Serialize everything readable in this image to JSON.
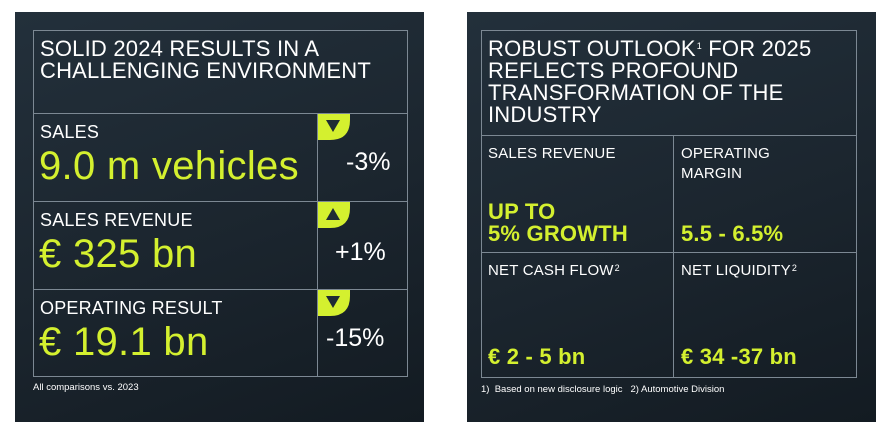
{
  "left": {
    "title_line1": "SOLID 2024 RESULTS IN A",
    "title_line2": "CHALLENGING ENVIRONMENT",
    "rows": [
      {
        "label": "SALES",
        "value": "9.0 m vehicles",
        "change": "-3%",
        "direction": "down"
      },
      {
        "label": "SALES REVENUE",
        "value": "€ 325 bn",
        "change": "+1%",
        "direction": "up"
      },
      {
        "label": "OPERATING RESULT",
        "value": "€ 19.1 bn",
        "change": "-15%",
        "direction": "down"
      }
    ],
    "footnote": "All comparisons vs. 2023"
  },
  "right": {
    "title_l1a": "ROBUST OUTLOOK",
    "title_l1sup": "1",
    "title_l1b": " FOR 2025",
    "title_l2": "REFLECTS PROFOUND",
    "title_l3": "TRANSFORMATION OF THE",
    "title_l4": "INDUSTRY",
    "cells": {
      "sales_revenue_label": "SALES REVENUE",
      "sales_revenue_value_l1": "UP TO",
      "sales_revenue_value_l2": "5% GROWTH",
      "operating_margin_label_l1": "OPERATING",
      "operating_margin_label_l2": "MARGIN",
      "operating_margin_value": "5.5 - 6.5%",
      "net_cash_flow_label": "NET CASH FLOW",
      "net_cash_flow_sup": "2",
      "net_cash_flow_value": "€ 2 - 5 bn",
      "net_liquidity_label": "NET LIQUIDITY",
      "net_liquidity_sup": "2",
      "net_liquidity_value": "€ 34 -37 bn"
    },
    "footnote": "1)  Based on new disclosure logic   2) Automotive Division"
  },
  "colors": {
    "accent": "#d4f02f",
    "background": "#1e2a34",
    "line": "#7c8893"
  }
}
